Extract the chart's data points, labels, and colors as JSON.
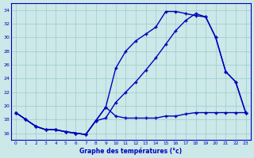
{
  "title": "Graphe des températures (°c)",
  "bg_color": "#cce8e8",
  "line_color": "#0000bb",
  "grid_color": "#99cccc",
  "x_labels": [
    "0",
    "1",
    "2",
    "3",
    "4",
    "5",
    "6",
    "7",
    "8",
    "9",
    "10",
    "11",
    "12",
    "13",
    "14",
    "15",
    "16",
    "17",
    "18",
    "19",
    "20",
    "21",
    "22",
    "23"
  ],
  "ylim": [
    15.0,
    35.0
  ],
  "yticks": [
    16,
    18,
    20,
    22,
    24,
    26,
    28,
    30,
    32,
    34
  ],
  "line1_x": [
    0,
    1,
    2,
    3,
    4,
    5,
    6,
    7,
    8,
    9,
    10,
    11,
    12,
    13,
    14,
    15,
    16,
    17,
    18,
    19,
    20,
    21,
    22,
    23
  ],
  "line1_y": [
    19,
    18,
    17,
    16.5,
    16.5,
    16.2,
    16.0,
    15.8,
    17.8,
    19.8,
    25.5,
    28.0,
    29.5,
    30.5,
    31.5,
    33.8,
    33.8,
    33.5,
    33.2,
    33.0,
    30.0,
    25.0,
    23.5,
    19.0
  ],
  "line2_x": [
    0,
    1,
    2,
    3,
    4,
    5,
    6,
    7,
    8,
    9,
    10,
    11,
    12,
    13,
    14,
    15,
    16,
    17,
    18,
    19,
    20,
    21,
    22,
    23
  ],
  "line2_y": [
    19,
    18,
    17,
    16.5,
    16.5,
    16.2,
    16.0,
    15.8,
    17.8,
    18.2,
    20.5,
    22.0,
    23.5,
    25.2,
    27.0,
    29.0,
    31.0,
    32.5,
    33.5,
    33.0,
    30.0,
    25.0,
    23.5,
    19.0
  ],
  "line3_x": [
    0,
    1,
    2,
    3,
    4,
    5,
    6,
    7,
    8,
    9,
    10,
    11,
    12,
    13,
    14,
    15,
    16,
    17,
    18,
    19,
    20,
    21,
    22,
    23
  ],
  "line3_y": [
    19,
    18,
    17,
    16.5,
    16.5,
    16.2,
    16.0,
    15.8,
    17.8,
    19.8,
    18.5,
    18.2,
    18.2,
    18.2,
    18.2,
    18.5,
    18.5,
    18.8,
    19.0,
    19.0,
    19.0,
    19.0,
    19.0,
    19.0
  ]
}
